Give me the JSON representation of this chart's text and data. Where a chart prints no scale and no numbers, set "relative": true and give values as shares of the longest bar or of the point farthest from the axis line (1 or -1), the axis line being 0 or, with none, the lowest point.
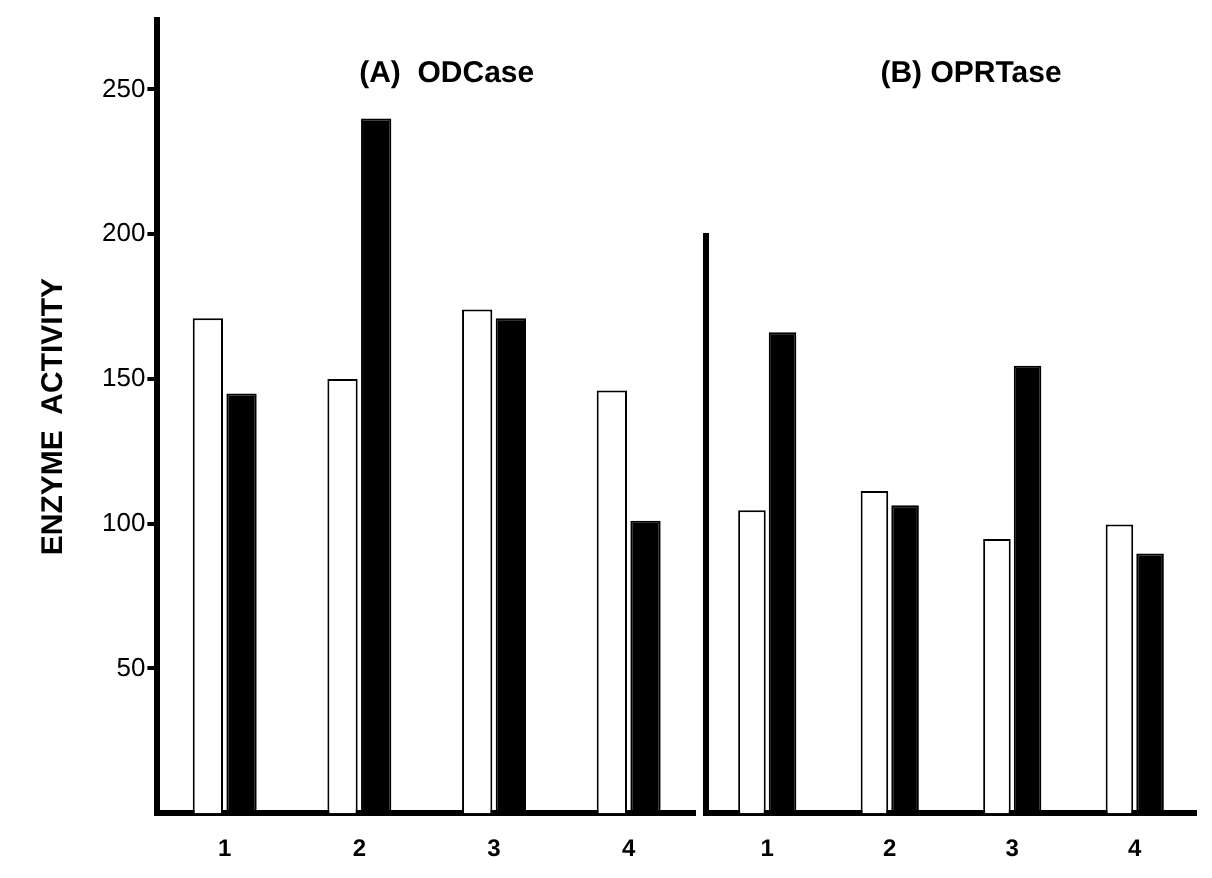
{
  "chart_data": [
    {
      "type": "bar",
      "title": "(A)  ODCase",
      "ylabel": "ENZYME  ACTIVITY",
      "categories": [
        "1",
        "2",
        "3",
        "4"
      ],
      "series": [
        {
          "color": "#ffffff",
          "values": [
            171,
            150,
            174,
            146
          ]
        },
        {
          "color": "#000000",
          "values": [
            145,
            240,
            171,
            101
          ]
        }
      ],
      "ylim": [
        0,
        274
      ],
      "yticks": [
        50,
        100,
        150,
        200,
        250
      ]
    },
    {
      "type": "bar",
      "title": "(B) OPRTase",
      "categories": [
        "1",
        "2",
        "3",
        "4"
      ],
      "series": [
        {
          "color": "#ffffff",
          "values": [
            0.63,
            0.67,
            0.57,
            0.6
          ]
        },
        {
          "color": "#000000",
          "values": [
            1,
            0.64,
            0.93,
            0.54
          ]
        }
      ],
      "relative": true
    }
  ]
}
